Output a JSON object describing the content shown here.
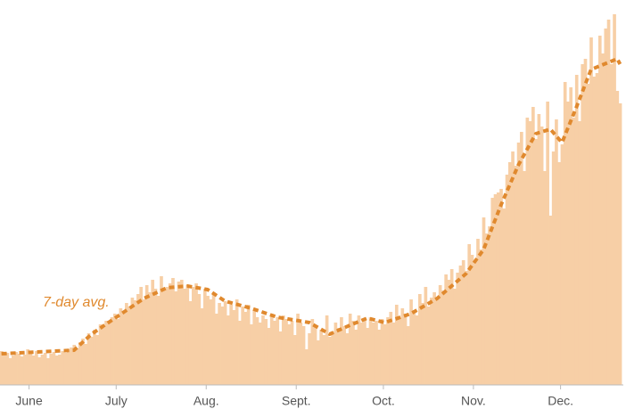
{
  "chart_data": {
    "type": "bar",
    "xlim": [
      0,
      214
    ],
    "ylim": [
      0,
      420
    ],
    "xticks": [
      {
        "value": 10,
        "label": "June"
      },
      {
        "value": 40,
        "label": "July"
      },
      {
        "value": 71,
        "label": "Aug."
      },
      {
        "value": 102,
        "label": "Sept."
      },
      {
        "value": 132,
        "label": "Oct."
      },
      {
        "value": 163,
        "label": "Nov."
      },
      {
        "value": 193,
        "label": "Dec."
      }
    ],
    "series": [
      {
        "type": "bar",
        "color": "#f7cfa6",
        "x": [
          0,
          1,
          2,
          3,
          4,
          5,
          6,
          7,
          8,
          9,
          10,
          11,
          12,
          13,
          14,
          15,
          16,
          17,
          18,
          19,
          20,
          21,
          22,
          23,
          24,
          25,
          26,
          27,
          28,
          29,
          30,
          31,
          32,
          33,
          34,
          35,
          36,
          37,
          38,
          39,
          40,
          41,
          42,
          43,
          44,
          45,
          46,
          47,
          48,
          49,
          50,
          51,
          52,
          53,
          54,
          55,
          56,
          57,
          58,
          59,
          60,
          61,
          62,
          63,
          64,
          65,
          66,
          67,
          68,
          69,
          70,
          71,
          72,
          73,
          74,
          75,
          76,
          77,
          78,
          79,
          80,
          81,
          82,
          83,
          84,
          85,
          86,
          87,
          88,
          89,
          90,
          91,
          92,
          93,
          94,
          95,
          96,
          97,
          98,
          99,
          100,
          101,
          102,
          103,
          104,
          105,
          106,
          107,
          108,
          109,
          110,
          111,
          112,
          113,
          114,
          115,
          116,
          117,
          118,
          119,
          120,
          121,
          122,
          123,
          124,
          125,
          126,
          127,
          128,
          129,
          130,
          131,
          132,
          133,
          134,
          135,
          136,
          137,
          138,
          139,
          140,
          141,
          142,
          143,
          144,
          145,
          146,
          147,
          148,
          149,
          150,
          151,
          152,
          153,
          154,
          155,
          156,
          157,
          158,
          159,
          160,
          161,
          162,
          163,
          164,
          165,
          166,
          167,
          168,
          169,
          170,
          171,
          172,
          173,
          174,
          175,
          176,
          177,
          178,
          179,
          180,
          181,
          182,
          183,
          184,
          185,
          186,
          187,
          188,
          189,
          190,
          191,
          192,
          193,
          194,
          195,
          196,
          197,
          198,
          199,
          200,
          201,
          202,
          203,
          204,
          205,
          206,
          207,
          208,
          209,
          210,
          211,
          212,
          213
        ],
        "values": [
          38,
          34,
          36,
          30,
          33,
          37,
          35,
          32,
          34,
          40,
          36,
          33,
          38,
          31,
          34,
          36,
          30,
          35,
          37,
          33,
          34,
          38,
          36,
          40,
          42,
          45,
          41,
          48,
          52,
          46,
          58,
          54,
          62,
          56,
          68,
          64,
          72,
          70,
          76,
          80,
          74,
          86,
          82,
          92,
          88,
          98,
          95,
          102,
          110,
          96,
          112,
          104,
          118,
          108,
          100,
          122,
          106,
          110,
          114,
          120,
          105,
          116,
          118,
          108,
          112,
          94,
          110,
          114,
          102,
          86,
          108,
          100,
          96,
          104,
          80,
          92,
          88,
          94,
          78,
          90,
          84,
          96,
          72,
          88,
          82,
          90,
          68,
          84,
          76,
          70,
          78,
          74,
          64,
          80,
          72,
          76,
          60,
          78,
          74,
          68,
          72,
          56,
          80,
          70,
          66,
          40,
          58,
          74,
          66,
          50,
          62,
          56,
          78,
          54,
          60,
          70,
          64,
          76,
          66,
          58,
          80,
          72,
          62,
          78,
          70,
          74,
          64,
          76,
          70,
          72,
          62,
          74,
          68,
          76,
          82,
          70,
          90,
          74,
          86,
          80,
          66,
          96,
          84,
          78,
          102,
          92,
          110,
          88,
          98,
          104,
          96,
          112,
          106,
          124,
          118,
          130,
          108,
          126,
          134,
          140,
          128,
          158,
          146,
          138,
          164,
          152,
          188,
          170,
          178,
          210,
          214,
          216,
          220,
          198,
          236,
          250,
          262,
          246,
          272,
          284,
          240,
          300,
          296,
          312,
          276,
          304,
          290,
          240,
          318,
          190,
          262,
          298,
          250,
          270,
          340,
          318,
          334,
          300,
          348,
          296,
          360,
          366,
          338,
          390,
          346,
          350,
          392,
          372,
          400,
          410,
          360,
          416,
          330,
          316
        ]
      },
      {
        "type": "line",
        "name": "7-day avg.",
        "color": "#e0892e",
        "x": [
          0,
          25,
          31,
          40,
          49,
          57,
          64,
          71,
          77,
          86,
          95,
          106,
          113,
          120,
          126,
          132,
          141,
          150,
          160,
          166,
          172,
          178,
          184,
          189,
          193,
          198,
          203,
          212,
          213
        ],
        "values": [
          35,
          39,
          57,
          77,
          97,
          109,
          111,
          107,
          94,
          86,
          76,
          70,
          57,
          67,
          75,
          70,
          80,
          97,
          125,
          152,
          202,
          247,
          282,
          287,
          272,
          312,
          354,
          366,
          360
        ]
      }
    ]
  }
}
